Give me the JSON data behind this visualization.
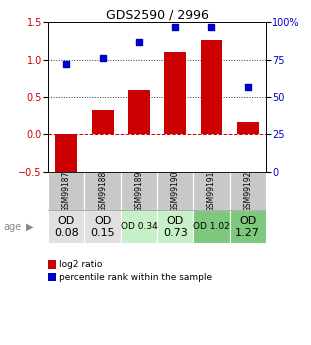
{
  "title": "GDS2590 / 2996",
  "samples": [
    "GSM99187",
    "GSM99188",
    "GSM99189",
    "GSM99190",
    "GSM99191",
    "GSM99192"
  ],
  "log2_ratio": [
    -0.62,
    0.32,
    0.6,
    1.1,
    1.27,
    0.17
  ],
  "percentile_rank": [
    72,
    76,
    87,
    97,
    97,
    57
  ],
  "bar_color": "#cc0000",
  "dot_color": "#0000cc",
  "ylim_left": [
    -0.5,
    1.5
  ],
  "ylim_right": [
    0,
    100
  ],
  "yticks_left": [
    -0.5,
    0.0,
    0.5,
    1.0,
    1.5
  ],
  "yticks_right": [
    0,
    25,
    50,
    75,
    100
  ],
  "age_labels": [
    "OD\n0.08",
    "OD\n0.15",
    "OD 0.34",
    "OD\n0.73",
    "OD 1.02",
    "OD\n1.27"
  ],
  "age_bg_colors": [
    "#e0e0e0",
    "#e0e0e0",
    "#c8f0c8",
    "#c8f0c8",
    "#7dc87d",
    "#7dc87d"
  ],
  "age_font_sizes": [
    8,
    8,
    6.5,
    8,
    6.5,
    8
  ],
  "sample_bg_color": "#c8c8c8",
  "legend_red_label": "log2 ratio",
  "legend_blue_label": "percentile rank within the sample",
  "age_label": "age"
}
